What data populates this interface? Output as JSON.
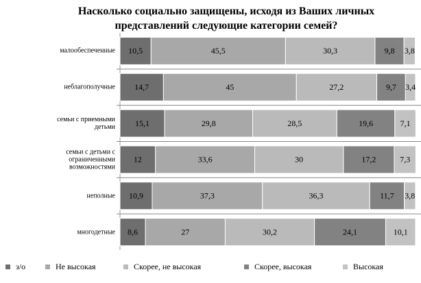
{
  "chart_data": {
    "type": "stacked-bar-horizontal",
    "title": "Насколько социально защищены, исходя из Ваших личных представлений следующие категории семей?",
    "categories": [
      "малообеспеченные",
      "неблагополучные",
      "семьи с приемными детьми",
      "семьи с детьми с ограниченными возможностями",
      "неполные",
      "многодетные"
    ],
    "xlim": [
      0,
      100
    ],
    "series": [
      {
        "name": "з/о",
        "color": "#6e6e6e",
        "values": [
          10.5,
          14.7,
          15.1,
          12,
          10.9,
          8.6
        ],
        "value_labels": [
          "10,5",
          "14,7",
          "15,1",
          "12",
          "10,9",
          "8,6"
        ]
      },
      {
        "name": "Не высокая",
        "color": "#a8a8a8",
        "values": [
          45.5,
          45,
          29.8,
          33.6,
          37.3,
          27
        ],
        "value_labels": [
          "45,5",
          "45",
          "29,8",
          "33,6",
          "37,3",
          "27"
        ]
      },
      {
        "name": "Скорее, не высокая",
        "color": "#bababa",
        "values": [
          30.3,
          27.2,
          28.5,
          30,
          36.3,
          30.2
        ],
        "value_labels": [
          "30,3",
          "27,2",
          "28,5",
          "30",
          "36,3",
          "30,2"
        ]
      },
      {
        "name": "Скорее, высокая",
        "color": "#828282",
        "values": [
          9.8,
          9.7,
          19.6,
          17.2,
          11.7,
          24.1
        ],
        "value_labels": [
          "9,8",
          "9,7",
          "19,6",
          "17,2",
          "11,7",
          "24,1"
        ]
      },
      {
        "name": "Высокая",
        "color": "#c2c2c2",
        "values": [
          3.8,
          3.4,
          7.1,
          7.3,
          3.8,
          10.1
        ],
        "value_labels": [
          "3,8",
          "3,4",
          "7,1",
          "7,3",
          "3,8",
          "10,1"
        ]
      }
    ]
  }
}
